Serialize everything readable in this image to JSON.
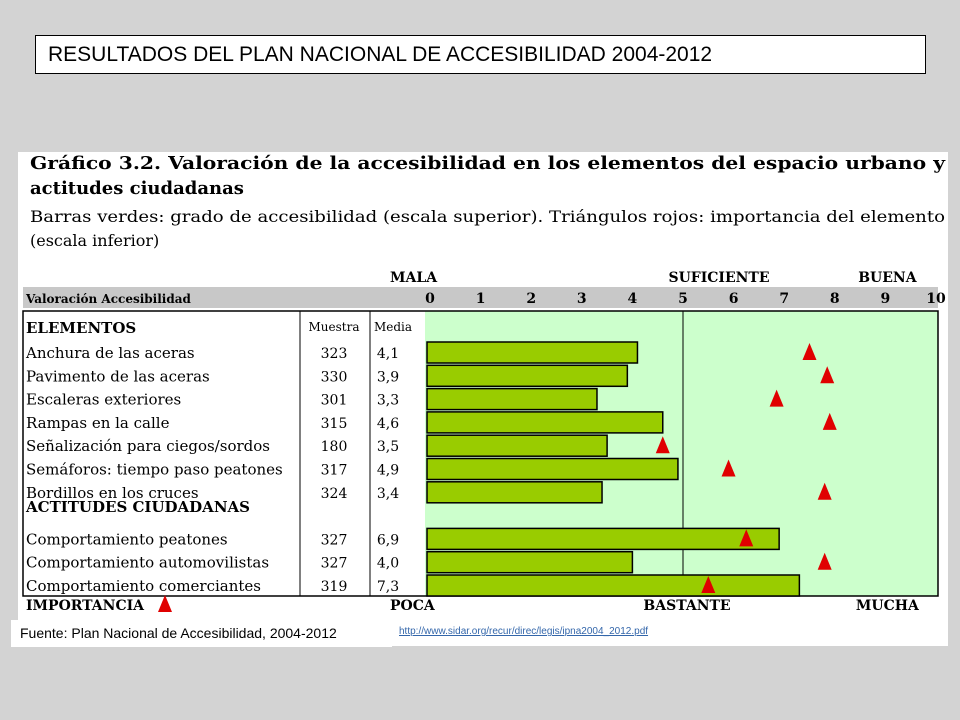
{
  "slide": {
    "title": "RESULTADOS DEL PLAN NACIONAL DE ACCESIBILIDAD 2004-2012",
    "source": "Fuente: Plan Nacional de Accesibilidad, 2004-2012",
    "link": "http://www.sidar.org/recur/direc/legis/ipna2004_2012.pdf"
  },
  "chart_data": {
    "type": "bar",
    "title": "Gráfico 3.2. Valoración de la accesibilidad en los elementos del espacio urbano y actitudes ciudadanas",
    "subtitle": "Barras verdes: grado de accesibilidad (escala superior). Triángulos rojos: importancia del elemento (escala inferior)",
    "top_scale": {
      "row_label": "Valoración Accesibilidad",
      "labels": [
        "MALA",
        "SUFICIENTE",
        "BUENA"
      ],
      "ticks": [
        0,
        1,
        2,
        3,
        4,
        5,
        6,
        7,
        8,
        9,
        10
      ],
      "range": [
        0,
        10
      ]
    },
    "bottom_scale": {
      "row_label": "IMPORTANCIA",
      "labels": [
        "POCA",
        "BASTANTE",
        "MUCHA"
      ]
    },
    "columns": {
      "muestra": "Muestra",
      "media": "Media"
    },
    "groups": [
      {
        "name": "ELEMENTOS",
        "rows": [
          {
            "label": "Anchura de las aceras",
            "muestra": "323",
            "media": "4,1",
            "value": 4.1,
            "importance": 7.5
          },
          {
            "label": "Pavimento de las aceras",
            "muestra": "330",
            "media": "3,9",
            "value": 3.9,
            "importance": 7.85
          },
          {
            "label": "Escaleras exteriores",
            "muestra": "301",
            "media": "3,3",
            "value": 3.3,
            "importance": 6.85
          },
          {
            "label": "Rampas en la calle",
            "muestra": "315",
            "media": "4,6",
            "value": 4.6,
            "importance": 7.9
          },
          {
            "label": "Señalización para ciegos/sordos",
            "muestra": "180",
            "media": "3,5",
            "value": 3.5,
            "importance": 4.6
          },
          {
            "label": "Semáforos: tiempo paso peatones",
            "muestra": "317",
            "media": "4,9",
            "value": 4.9,
            "importance": 5.9
          },
          {
            "label": "Bordillos en los cruces",
            "muestra": "324",
            "media": "3,4",
            "value": 3.4,
            "importance": 7.8
          }
        ]
      },
      {
        "name": "ACTITUDES CIUDADANAS",
        "rows": [
          {
            "label": "Comportamiento peatones",
            "muestra": "327",
            "media": "6,9",
            "value": 6.9,
            "importance": 6.25
          },
          {
            "label": "Comportamiento automovilistas",
            "muestra": "327",
            "media": "4,0",
            "value": 4.0,
            "importance": 7.8
          },
          {
            "label": "Comportamiento comerciantes",
            "muestra": "319",
            "media": "7,3",
            "value": 7.3,
            "importance": 5.5
          }
        ]
      }
    ],
    "colors": {
      "bar": "#99cc00",
      "plot_bg": "#ccffcc",
      "header_band": "#c8c8c8",
      "triangle": "#e00000"
    }
  }
}
